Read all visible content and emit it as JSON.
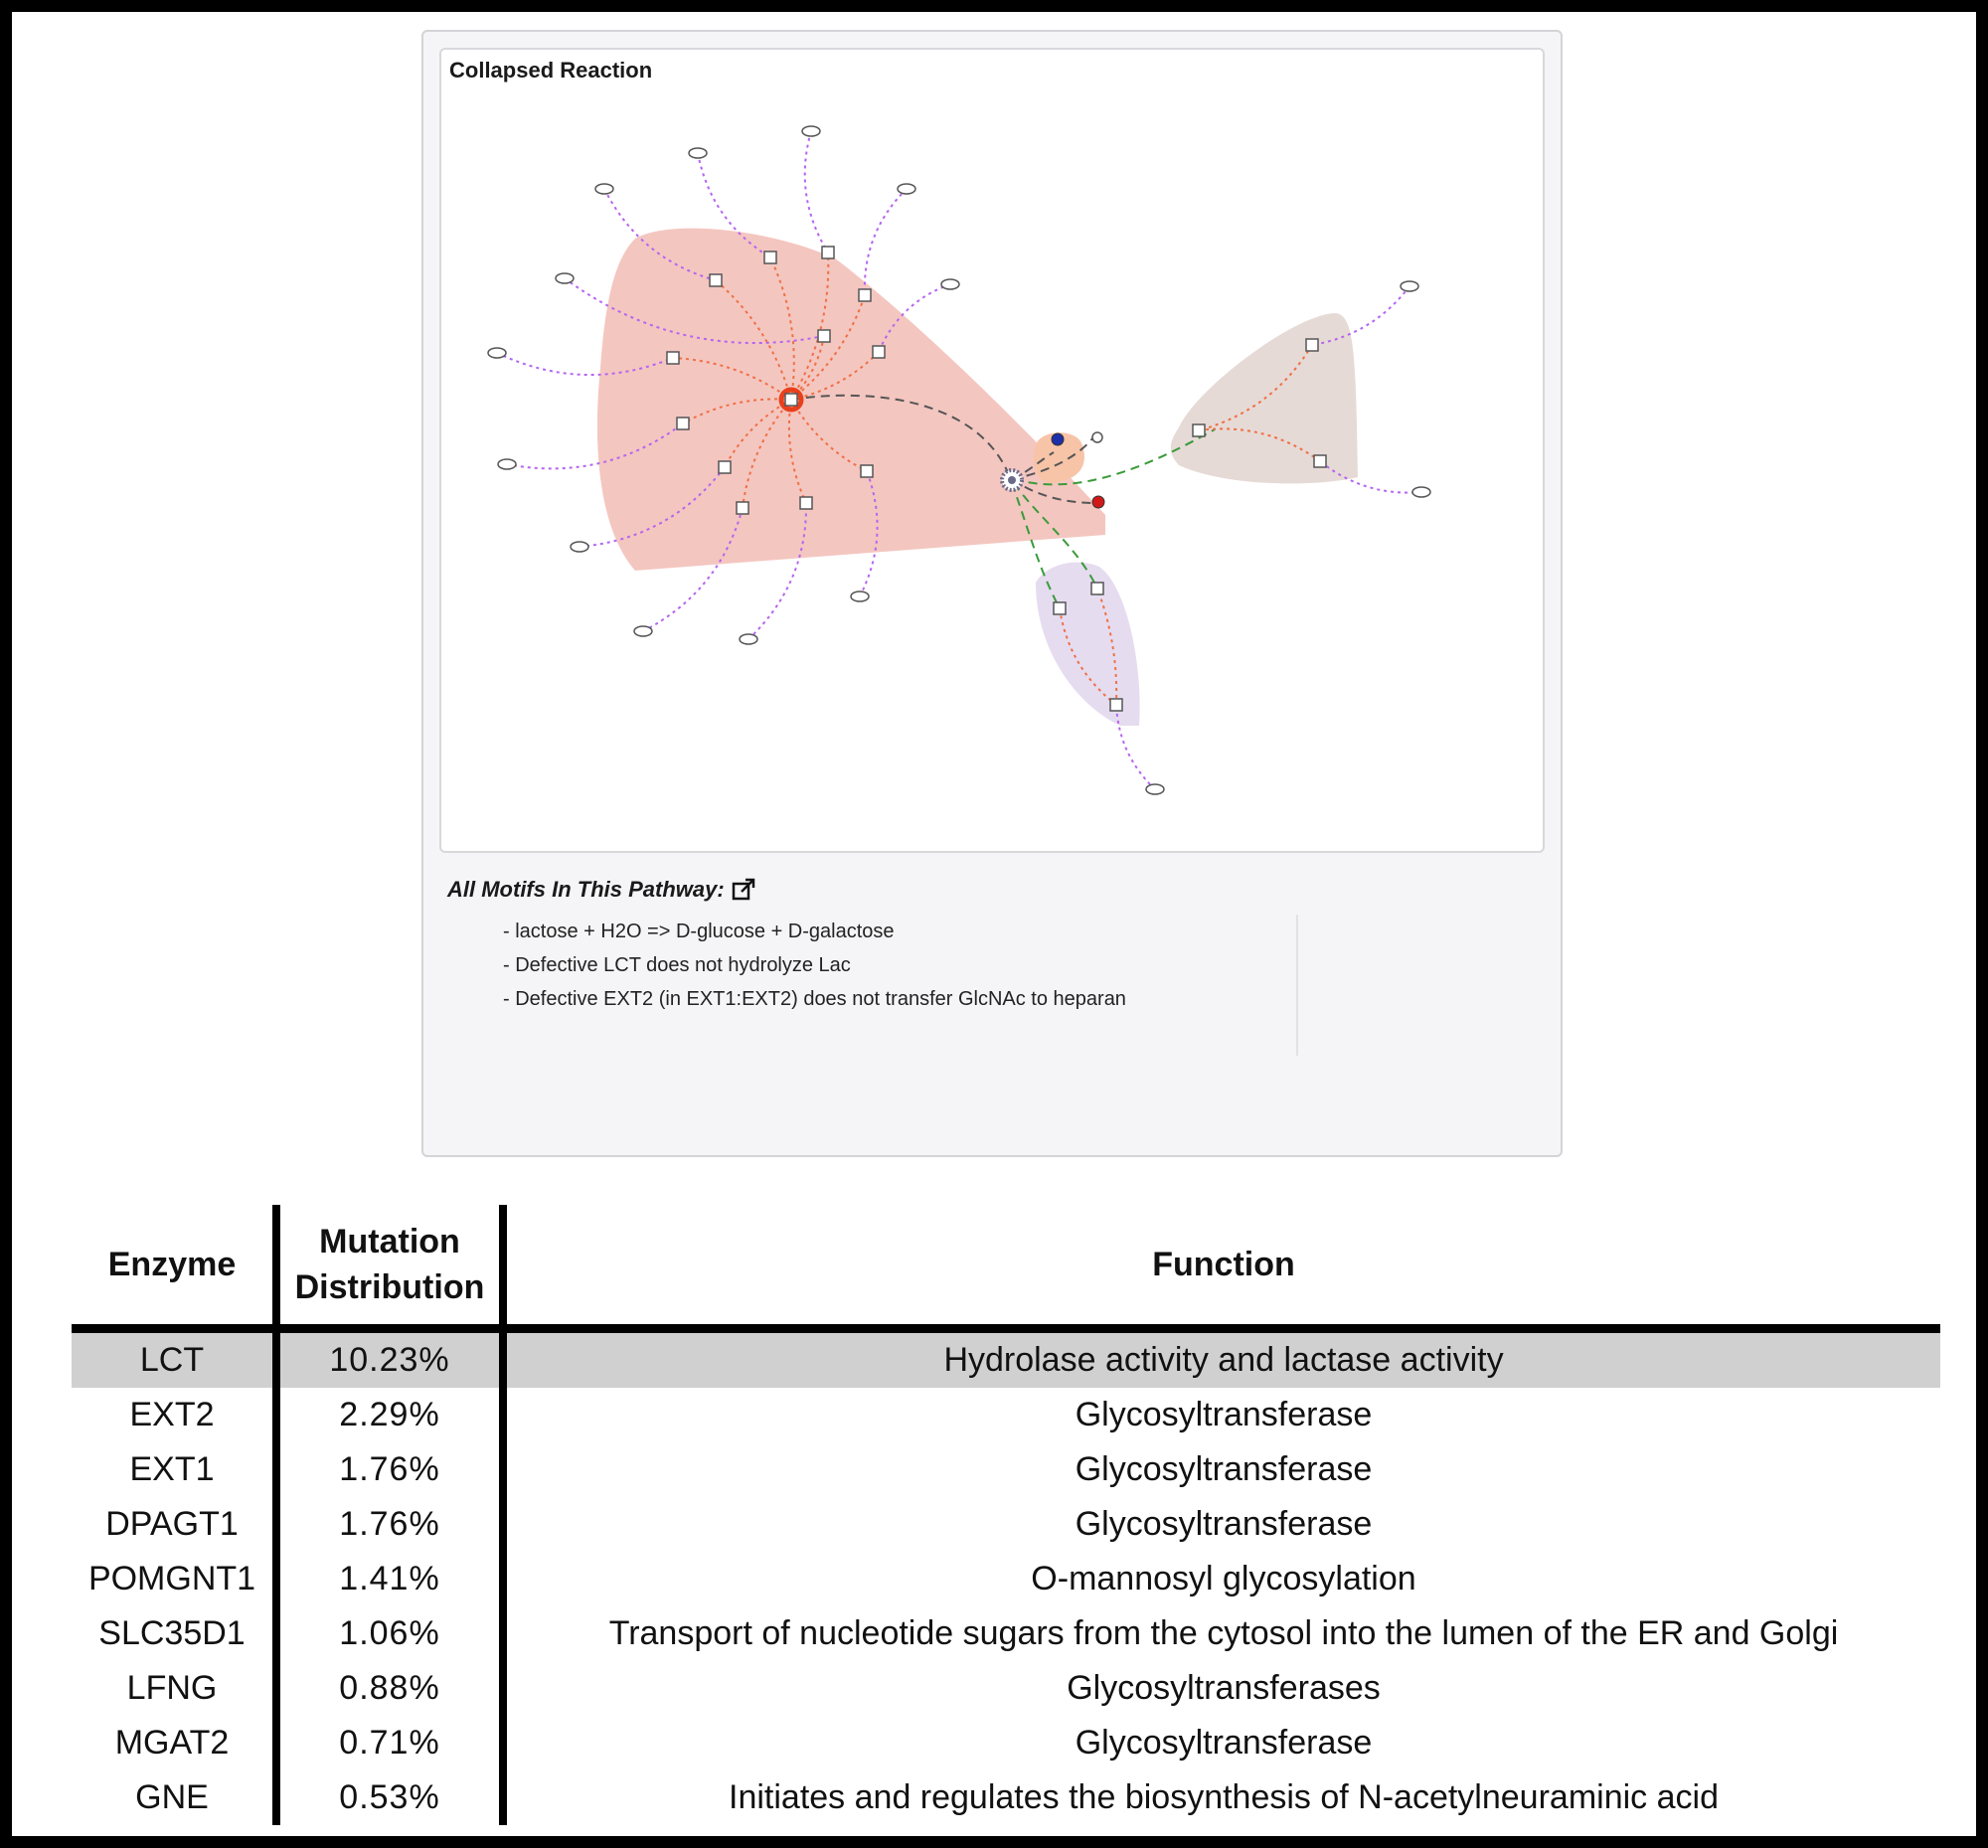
{
  "graph": {
    "title": "Collapsed Reaction",
    "colors": {
      "red_hull": "#f4c6c0",
      "orange_hull": "#f7c4a8",
      "taupe_hull": "#e6dad6",
      "lavender_hull": "#e6dcf0",
      "orange_edge": "#ef7045",
      "purple_edge": "#b565f0",
      "green_edge": "#3a9a3a",
      "grey_edge": "#555555",
      "hub": "#e8401c",
      "blue_node": "#1d2fa8",
      "red_node": "#d21919"
    }
  },
  "motifs": {
    "heading": "All Motifs In This Pathway:",
    "icon": "external-link-icon",
    "items": [
      "- lactose + H2O => D-glucose + D-galactose",
      "- Defective LCT does not hydrolyze Lac",
      "- Defective EXT2 (in EXT1:EXT2) does not transfer GlcNAc to heparan"
    ]
  },
  "table": {
    "headers": {
      "enzyme": "Enzyme",
      "mutation_line1": "Mutation",
      "mutation_line2": "Distribution",
      "function": "Function"
    },
    "rows": [
      {
        "enzyme": "LCT",
        "mutation": "10.23%",
        "function": "Hydrolase activity and lactase activity"
      },
      {
        "enzyme": "EXT2",
        "mutation": "2.29%",
        "function": "Glycosyltransferase"
      },
      {
        "enzyme": "EXT1",
        "mutation": "1.76%",
        "function": "Glycosyltransferase"
      },
      {
        "enzyme": "DPAGT1",
        "mutation": "1.76%",
        "function": "Glycosyltransferase"
      },
      {
        "enzyme": "POMGNT1",
        "mutation": "1.41%",
        "function": "O-mannosyl glycosylation"
      },
      {
        "enzyme": "SLC35D1",
        "mutation": "1.06%",
        "function": "Transport of nucleotide sugars from the cytosol into the lumen of the ER and Golgi"
      },
      {
        "enzyme": "LFNG",
        "mutation": "0.88%",
        "function": "Glycosyltransferases"
      },
      {
        "enzyme": "MGAT2",
        "mutation": "0.71%",
        "function": "Glycosyltransferase"
      },
      {
        "enzyme": "GNE",
        "mutation": "0.53%",
        "function": "Initiates and regulates the biosynthesis of N-acetylneuraminic acid"
      }
    ],
    "highlight_color": "#d0d0d0"
  }
}
